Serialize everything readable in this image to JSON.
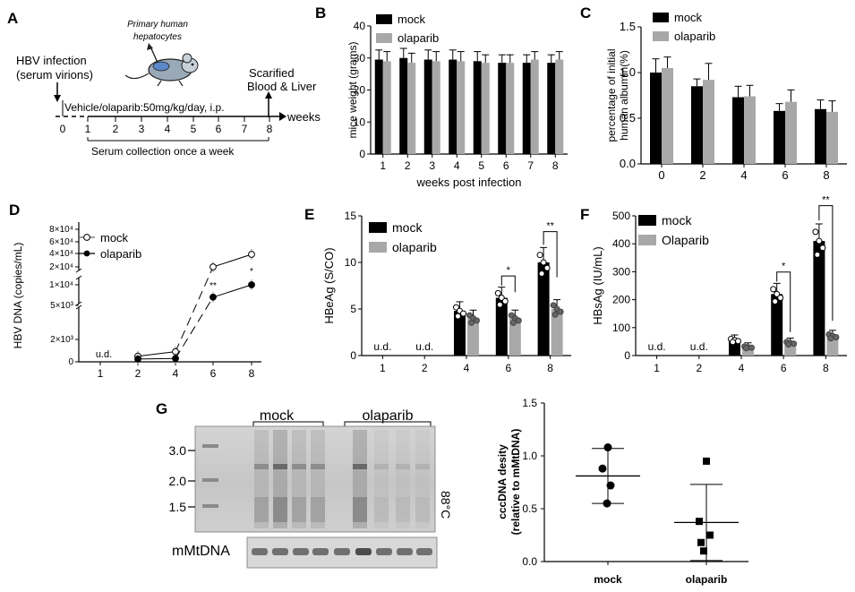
{
  "panel_labels": {
    "a": "A",
    "b": "B",
    "c": "C",
    "d": "D",
    "e": "E",
    "f": "F",
    "g": "G"
  },
  "panel_a": {
    "infection_line1": "HBV infection",
    "infection_line2": "(serum virions)",
    "hepatocytes_line1": "Primary human",
    "hepatocytes_line2": "hepatocytes",
    "sacrifice_line1": "Scarified",
    "sacrifice_line2": "Blood & Liver",
    "treatment": "Vehicle/olaparib:50mg/kg/day, i.p.",
    "axis_unit": "weeks",
    "ticks": [
      "0",
      "1",
      "2",
      "3",
      "4",
      "5",
      "6",
      "7",
      "8"
    ],
    "serum": "Serum collection once a week"
  },
  "chart_data": [
    {
      "id": "B",
      "type": "bar",
      "xlabel": "weeks post infection",
      "ylabel": "mice weight (grams)",
      "ylim": [
        0,
        40
      ],
      "yticks": [
        "0",
        "10",
        "20",
        "30",
        "40"
      ],
      "categories": [
        "1",
        "2",
        "3",
        "4",
        "5",
        "6",
        "7",
        "8"
      ],
      "series": [
        {
          "name": "mock",
          "color": "#000000",
          "values": [
            29.5,
            30,
            29.5,
            29.5,
            29,
            28.5,
            28.5,
            28.5
          ],
          "err": [
            3,
            3,
            3,
            3,
            3,
            2.5,
            2.5,
            2.5
          ]
        },
        {
          "name": "olaparib",
          "color": "#a8a8a8",
          "values": [
            29,
            28.5,
            29,
            29,
            28.5,
            28.5,
            29.5,
            29.5
          ],
          "err": [
            3,
            3,
            3,
            3,
            2.5,
            2.5,
            2.5,
            2.5
          ]
        }
      ],
      "legend": "top-left"
    },
    {
      "id": "C",
      "type": "bar",
      "xlabel": "",
      "ylabel": "percentage of initial human albumin(%)",
      "ylim": [
        0,
        1.5
      ],
      "yticks": [
        "0.0",
        "0.5",
        "1.0",
        "1.5"
      ],
      "categories": [
        "0",
        "2",
        "4",
        "6",
        "8"
      ],
      "series": [
        {
          "name": "mock",
          "color": "#000000",
          "values": [
            1.0,
            0.85,
            0.73,
            0.58,
            0.6
          ],
          "err": [
            0.15,
            0.08,
            0.12,
            0.08,
            0.1
          ]
        },
        {
          "name": "olaparib",
          "color": "#a8a8a8",
          "values": [
            1.05,
            0.92,
            0.74,
            0.68,
            0.57
          ],
          "err": [
            0.12,
            0.18,
            0.12,
            0.13,
            0.12
          ]
        }
      ],
      "legend": "top-left"
    },
    {
      "id": "D",
      "type": "line",
      "ylabel": "HBV DNA (copies/mL)",
      "x": [
        "1",
        "2",
        "4",
        "6",
        "8"
      ],
      "yticks": [
        "0",
        "2×10³",
        "5×10³",
        "1×10⁴",
        "2×10⁴",
        "4×10⁴",
        "6×10⁴",
        "8×10⁴"
      ],
      "series": [
        {
          "name": "mock",
          "marker": "open",
          "values": [
            null,
            500,
            900,
            20000,
            40000
          ]
        },
        {
          "name": "olaparib",
          "marker": "filled",
          "values": [
            null,
            250,
            300,
            7000,
            10000
          ]
        }
      ],
      "annotations": [
        "u.d.",
        "**",
        "**",
        "*"
      ]
    },
    {
      "id": "E",
      "type": "bar",
      "ylabel": "HBeAg (S/CO)",
      "ylim": [
        0,
        15
      ],
      "yticks": [
        "0",
        "5",
        "10",
        "15"
      ],
      "categories": [
        "1",
        "2",
        "4",
        "6",
        "8"
      ],
      "series": [
        {
          "name": "mock",
          "color": "#000000",
          "values": [
            0,
            0,
            4.8,
            6.2,
            10
          ]
        },
        {
          "name": "olaparib",
          "color": "#a8a8a8",
          "values": [
            0,
            0,
            4,
            4,
            5
          ]
        }
      ],
      "annotations": [
        "u.d.",
        "u.d.",
        "*",
        "**"
      ]
    },
    {
      "id": "F",
      "type": "bar",
      "ylabel": "HBsAg (IU/mL)",
      "ylim": [
        0,
        500
      ],
      "yticks": [
        "0",
        "100",
        "200",
        "300",
        "400",
        "500"
      ],
      "categories": [
        "1",
        "2",
        "4",
        "6",
        "8"
      ],
      "series": [
        {
          "name": "mock",
          "color": "#000000",
          "values": [
            0,
            0,
            55,
            220,
            410
          ]
        },
        {
          "name": "Olaparib",
          "color": "#a8a8a8",
          "values": [
            0,
            0,
            30,
            45,
            70
          ]
        }
      ],
      "annotations": [
        "u.d.",
        "u.d.",
        "*",
        "**"
      ]
    },
    {
      "id": "G-right",
      "type": "scatter",
      "ylabel": "cccDNA desity (relative to mMtDNA)",
      "ylim": [
        0,
        1.5
      ],
      "yticks": [
        "0.0",
        "0.5",
        "1.0",
        "1.5"
      ],
      "categories": [
        "mock",
        "olaparib"
      ],
      "points": [
        [
          1.08,
          0.88,
          0.72,
          0.55
        ],
        [
          0.95,
          0.38,
          0.25,
          0.18,
          0.1
        ]
      ],
      "mean": [
        0.81,
        0.37
      ],
      "sd": [
        0.26,
        0.36
      ]
    }
  ],
  "panel_g_blot": {
    "group1": "mock",
    "group2": "olaparib",
    "markers": [
      "3.0",
      "2.0",
      "1.5"
    ],
    "temp": "88°C",
    "loading": "mMtDNA"
  }
}
